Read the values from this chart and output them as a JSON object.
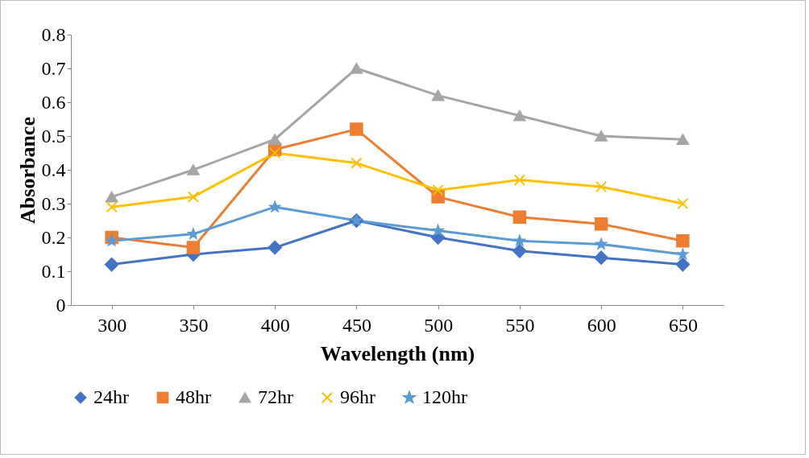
{
  "chart_data": {
    "type": "line",
    "xlabel": "Wavelength (nm)",
    "ylabel": "Absorbance",
    "categories": [
      "300",
      "350",
      "400",
      "450",
      "500",
      "550",
      "600",
      "650"
    ],
    "series": [
      {
        "name": "24hr",
        "color": "#4472c4",
        "marker": "diamond",
        "values": [
          0.12,
          0.15,
          0.17,
          0.25,
          0.2,
          0.16,
          0.14,
          0.12
        ]
      },
      {
        "name": "48hr",
        "color": "#ed7d31",
        "marker": "square",
        "values": [
          0.2,
          0.17,
          0.46,
          0.52,
          0.32,
          0.26,
          0.24,
          0.19
        ]
      },
      {
        "name": "72hr",
        "color": "#a5a5a5",
        "marker": "triangle",
        "values": [
          0.32,
          0.4,
          0.49,
          0.7,
          0.62,
          0.56,
          0.5,
          0.49
        ]
      },
      {
        "name": "96hr",
        "color": "#ffc000",
        "marker": "cross",
        "values": [
          0.29,
          0.32,
          0.45,
          0.42,
          0.34,
          0.37,
          0.35,
          0.3
        ]
      },
      {
        "name": "120hr",
        "color": "#5b9bd5",
        "marker": "star",
        "values": [
          0.19,
          0.21,
          0.29,
          0.25,
          0.22,
          0.19,
          0.18,
          0.15
        ]
      }
    ],
    "ylim": [
      0,
      0.8
    ],
    "yticks": [
      0,
      0.1,
      0.2,
      0.3,
      0.4,
      0.5,
      0.6,
      0.7,
      0.8
    ],
    "grid": false,
    "legend": "bottom"
  }
}
